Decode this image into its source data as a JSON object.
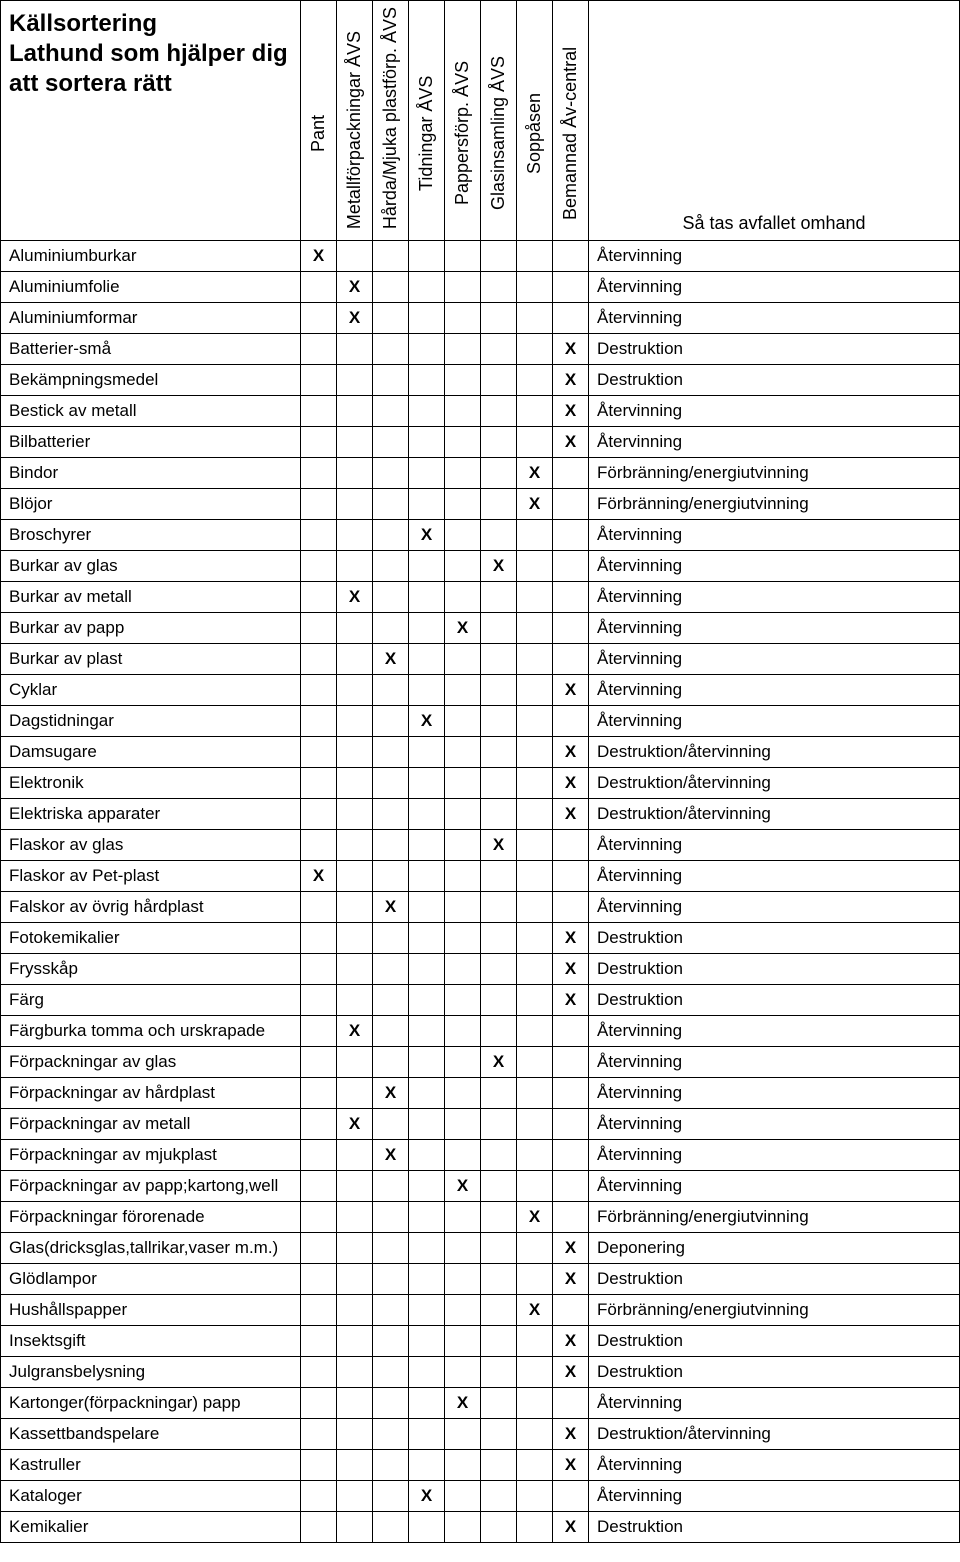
{
  "title_lines": [
    "Källsortering",
    "Lathund som hjälper dig",
    "att sortera rätt"
  ],
  "columns": [
    "Pant",
    "Metallförpackningar ÅVS",
    "Hårda/Mjuka plastförp. ÅVS",
    "Tidningar ÅVS",
    "Pappersförp. ÅVS",
    "Glasinsamling ÅVS",
    "Soppåsen",
    "Bemannad Åv-central"
  ],
  "outcome_header": "Så tas avfallet omhand",
  "mark": "X",
  "rows": [
    {
      "item": "Aluminiumburkar",
      "col": 0,
      "outcome": "Återvinning"
    },
    {
      "item": "Aluminiumfolie",
      "col": 1,
      "outcome": "Återvinning"
    },
    {
      "item": "Aluminiumformar",
      "col": 1,
      "outcome": "Återvinning"
    },
    {
      "item": "Batterier-små",
      "col": 7,
      "outcome": "Destruktion"
    },
    {
      "item": "Bekämpningsmedel",
      "col": 7,
      "outcome": "Destruktion"
    },
    {
      "item": "Bestick av metall",
      "col": 7,
      "outcome": "Återvinning"
    },
    {
      "item": "Bilbatterier",
      "col": 7,
      "outcome": "Återvinning"
    },
    {
      "item": "Bindor",
      "col": 6,
      "outcome": "Förbränning/energiutvinning"
    },
    {
      "item": "Blöjor",
      "col": 6,
      "outcome": "Förbränning/energiutvinning"
    },
    {
      "item": "Broschyrer",
      "col": 3,
      "outcome": "Återvinning"
    },
    {
      "item": "Burkar av glas",
      "col": 5,
      "outcome": "Återvinning"
    },
    {
      "item": "Burkar av metall",
      "col": 1,
      "outcome": "Återvinning"
    },
    {
      "item": "Burkar av papp",
      "col": 4,
      "outcome": "Återvinning"
    },
    {
      "item": "Burkar av plast",
      "col": 2,
      "outcome": "Återvinning"
    },
    {
      "item": "Cyklar",
      "col": 7,
      "outcome": "Återvinning"
    },
    {
      "item": "Dagstidningar",
      "col": 3,
      "outcome": "Återvinning"
    },
    {
      "item": "Damsugare",
      "col": 7,
      "outcome": "Destruktion/återvinning"
    },
    {
      "item": "Elektronik",
      "col": 7,
      "outcome": "Destruktion/återvinning"
    },
    {
      "item": "Elektriska apparater",
      "col": 7,
      "outcome": "Destruktion/återvinning"
    },
    {
      "item": "Flaskor av glas",
      "col": 5,
      "outcome": "Återvinning"
    },
    {
      "item": "Flaskor av Pet-plast",
      "col": 0,
      "outcome": "Återvinning"
    },
    {
      "item": "Falskor av övrig hårdplast",
      "col": 2,
      "outcome": "Återvinning"
    },
    {
      "item": "Fotokemikalier",
      "col": 7,
      "outcome": "Destruktion"
    },
    {
      "item": "Frysskåp",
      "col": 7,
      "outcome": "Destruktion"
    },
    {
      "item": "Färg",
      "col": 7,
      "outcome": "Destruktion"
    },
    {
      "item": "Färgburka tomma och urskrapade",
      "col": 1,
      "outcome": "Återvinning"
    },
    {
      "item": "Förpackningar av glas",
      "col": 5,
      "outcome": "Återvinning"
    },
    {
      "item": "Förpackningar av hårdplast",
      "col": 2,
      "outcome": "Återvinning"
    },
    {
      "item": "Förpackningar av metall",
      "col": 1,
      "outcome": "Återvinning"
    },
    {
      "item": "Förpackningar av mjukplast",
      "col": 2,
      "outcome": "Återvinning"
    },
    {
      "item": "Förpackningar av papp;kartong,well",
      "col": 4,
      "outcome": "Återvinning"
    },
    {
      "item": "Förpackningar förorenade",
      "col": 6,
      "outcome": "Förbränning/energiutvinning"
    },
    {
      "item": "Glas(dricksglas,tallrikar,vaser m.m.)",
      "col": 7,
      "outcome": "Deponering"
    },
    {
      "item": "Glödlampor",
      "col": 7,
      "outcome": "Destruktion"
    },
    {
      "item": "Hushållspapper",
      "col": 6,
      "outcome": "Förbränning/energiutvinning"
    },
    {
      "item": "Insektsgift",
      "col": 7,
      "outcome": "Destruktion"
    },
    {
      "item": "Julgransbelysning",
      "col": 7,
      "outcome": "Destruktion"
    },
    {
      "item": "Kartonger(förpackningar) papp",
      "col": 4,
      "outcome": "Återvinning"
    },
    {
      "item": "Kassettbandspelare",
      "col": 7,
      "outcome": "Destruktion/återvinning"
    },
    {
      "item": "Kastruller",
      "col": 7,
      "outcome": "Återvinning"
    },
    {
      "item": "Kataloger",
      "col": 3,
      "outcome": "Återvinning"
    },
    {
      "item": "Kemikalier",
      "col": 7,
      "outcome": "Destruktion"
    }
  ]
}
